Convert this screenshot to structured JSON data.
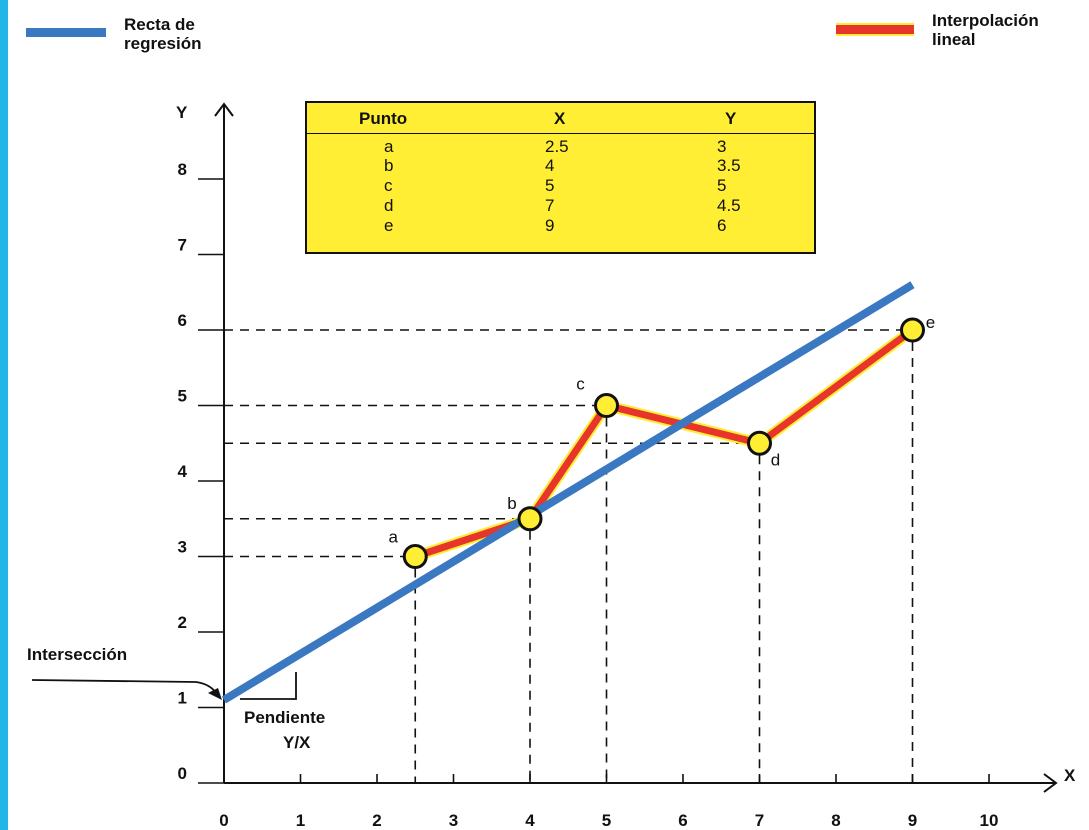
{
  "legend": {
    "regression_label": "Recta de\nregresión",
    "interpolation_label": "Interpolación\nlineal",
    "regression_color": "#3a78c2",
    "interpolation_color": "#e8352b"
  },
  "annotations": {
    "intercept": "Intersección",
    "slope_line1": "Pendiente",
    "slope_line2": "Y/X"
  },
  "table": {
    "headers": [
      "Punto",
      "X",
      "Y"
    ],
    "rows": [
      [
        "a",
        "2.5",
        "3"
      ],
      [
        "b",
        "4",
        "3.5"
      ],
      [
        "c",
        "5",
        "5"
      ],
      [
        "d",
        "7",
        "4.5"
      ],
      [
        "e",
        "9",
        "6"
      ]
    ],
    "background": "#ffee33"
  },
  "chart_data": {
    "type": "line",
    "xlabel": "X",
    "ylabel": "Y",
    "xlim": [
      0,
      10
    ],
    "ylim": [
      0,
      8
    ],
    "x_ticks": [
      0,
      1,
      2,
      3,
      4,
      5,
      6,
      7,
      8,
      9,
      10
    ],
    "y_ticks": [
      0,
      1,
      2,
      3,
      4,
      5,
      6,
      7,
      8
    ],
    "grid": false,
    "series": [
      {
        "name": "Interpolación lineal",
        "kind": "interpolation",
        "color": "#e8352b",
        "points": [
          {
            "label": "a",
            "x": 2.5,
            "y": 3
          },
          {
            "label": "b",
            "x": 4,
            "y": 3.5
          },
          {
            "label": "c",
            "x": 5,
            "y": 5
          },
          {
            "label": "d",
            "x": 7,
            "y": 4.5
          },
          {
            "label": "e",
            "x": 9,
            "y": 6
          }
        ]
      },
      {
        "name": "Recta de regresión",
        "kind": "regression",
        "color": "#3a78c2",
        "line": {
          "x_start": 0,
          "y_start": 1.1,
          "x_end": 9,
          "y_end": 6.6
        }
      }
    ],
    "point_marker_color": "#ffee33"
  }
}
